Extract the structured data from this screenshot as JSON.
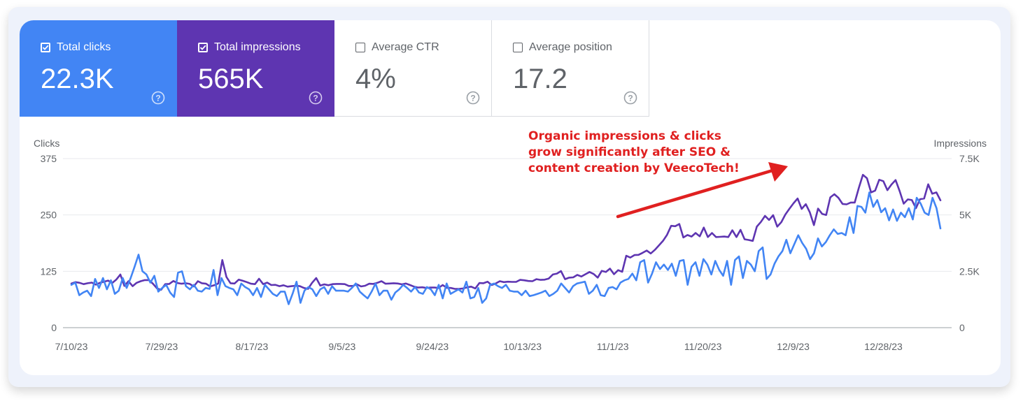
{
  "metrics": [
    {
      "label": "Total clicks",
      "value": "22.3K",
      "checked": true,
      "color": "#4285f4"
    },
    {
      "label": "Total impressions",
      "value": "565K",
      "checked": true,
      "color": "#5e35b1"
    },
    {
      "label": "Average CTR",
      "value": "4%",
      "checked": false
    },
    {
      "label": "Average position",
      "value": "17.2",
      "checked": false
    }
  ],
  "annotation": {
    "lines": [
      "Organic impressions & clicks",
      "grow significantly after SEO &",
      "content creation by VeecoTech!"
    ],
    "color": "#e02020"
  },
  "chart_data": {
    "type": "line",
    "ylabel_left": "Clicks",
    "ylabel_right": "Impressions",
    "ylim_left": [
      0,
      375
    ],
    "ylim_right": [
      0,
      7500
    ],
    "yticks_left": [
      "0",
      "125",
      "250",
      "375"
    ],
    "yticks_right": [
      "0",
      "2.5K",
      "5K",
      "7.5K"
    ],
    "xticks": [
      "7/10/23",
      "7/29/23",
      "8/17/23",
      "9/5/23",
      "9/24/23",
      "10/13/23",
      "11/1/23",
      "11/20/23",
      "12/9/23",
      "12/28/23"
    ],
    "x_start": "2023-07-10",
    "x_end": "2024-01-09",
    "grid": true,
    "series": [
      {
        "name": "Total clicks",
        "axis": "left",
        "color": "#4285f4",
        "values": [
          95,
          100,
          72,
          78,
          82,
          70,
          108,
          88,
          110,
          85,
          105,
          75,
          82,
          110,
          88,
          110,
          135,
          162,
          125,
          118,
          100,
          115,
          80,
          88,
          95,
          78,
          68,
          122,
          125,
          92,
          85,
          95,
          82,
          80,
          88,
          86,
          128,
          72,
          110,
          92,
          88,
          85,
          72,
          98,
          90,
          85,
          72,
          88,
          68,
          95,
          85,
          75,
          70,
          80,
          80,
          52,
          75,
          102,
          55,
          82,
          90,
          85,
          70,
          85,
          90,
          75,
          92,
          82,
          82,
          82,
          80,
          88,
          98,
          80,
          72,
          65,
          80,
          98,
          72,
          82,
          82,
          62,
          78,
          85,
          95,
          88,
          80,
          90,
          78,
          75,
          90,
          85,
          72,
          95,
          65,
          98,
          75,
          80,
          85,
          78,
          102,
          65,
          68,
          88,
          55,
          65,
          95,
          98,
          92,
          88,
          95,
          82,
          80,
          80,
          72,
          82,
          70,
          72,
          75,
          78,
          82,
          70,
          75,
          82,
          98,
          88,
          78,
          92,
          98,
          100,
          102,
          75,
          82,
          95,
          72,
          70,
          88,
          90,
          85,
          100,
          105,
          108,
          120,
          105,
          145,
          150,
          100,
          120,
          145,
          130,
          140,
          128,
          142,
          115,
          148,
          150,
          95,
          135,
          145,
          115,
          152,
          140,
          118,
          148,
          128,
          115,
          148,
          95,
          150,
          158,
          110,
          148,
          140,
          125,
          170,
          178,
          108,
          118,
          142,
          158,
          170,
          195,
          165,
          185,
          205,
          188,
          175,
          152,
          165,
          198,
          180,
          190,
          205,
          218,
          208,
          210,
          205,
          245,
          210,
          270,
          268,
          255,
          300,
          268,
          283,
          256,
          265,
          238,
          262,
          237,
          255,
          245,
          265,
          240,
          288,
          275,
          255,
          250,
          288,
          265,
          220
        ]
      },
      {
        "name": "Total impressions",
        "axis": "right",
        "color": "#5e35b1",
        "values": [
          1960,
          2020,
          1990,
          1930,
          1970,
          2000,
          1910,
          1990,
          2040,
          2090,
          1980,
          2130,
          2360,
          1850,
          2060,
          1840,
          1990,
          2060,
          2110,
          2110,
          1950,
          1740,
          1680,
          1930,
          1940,
          2070,
          1980,
          1950,
          1970,
          1940,
          1830,
          2060,
          1970,
          1950,
          1830,
          1880,
          1960,
          3000,
          2250,
          1970,
          1960,
          2130,
          2080,
          2020,
          1950,
          1930,
          2170,
          1930,
          2000,
          1890,
          1900,
          1840,
          1880,
          1820,
          1840,
          1860,
          1840,
          1760,
          1720,
          1990,
          2200,
          1870,
          1920,
          1880,
          1930,
          1940,
          1940,
          1930,
          1850,
          1850,
          1920,
          1830,
          1860,
          1950,
          1940,
          1990,
          2060,
          1950,
          1960,
          1970,
          1960,
          1920,
          1960,
          1890,
          1820,
          1780,
          1790,
          1760,
          1780,
          1780,
          1760,
          1890,
          1770,
          1760,
          1720,
          1720,
          1740,
          1790,
          1820,
          1740,
          1980,
          1970,
          2040,
          1890,
          1960,
          2060,
          2020,
          2040,
          2030,
          2030,
          2120,
          2100,
          2070,
          2060,
          2150,
          2120,
          2130,
          2180,
          2360,
          2400,
          2510,
          2150,
          2220,
          2230,
          2340,
          2270,
          2370,
          2470,
          2380,
          2220,
          2520,
          2470,
          2620,
          2370,
          2550,
          2480,
          3190,
          3110,
          3220,
          3230,
          3320,
          3420,
          3290,
          3450,
          3650,
          3850,
          4120,
          4520,
          4500,
          4600,
          4000,
          4110,
          4040,
          4200,
          4050,
          4440,
          4020,
          4200,
          4020,
          4030,
          4040,
          4020,
          4320,
          4020,
          4340,
          3920,
          3890,
          3850,
          4480,
          4690,
          4960,
          4780,
          4990,
          4480,
          4680,
          5020,
          5280,
          5520,
          5730,
          5270,
          5480,
          5110,
          4550,
          5280,
          5050,
          5000,
          5780,
          5920,
          5760,
          5490,
          5470,
          5550,
          5550,
          6200,
          6780,
          6630,
          6000,
          6080,
          6560,
          6500,
          6100,
          6350,
          6550,
          6060,
          5500,
          5690,
          5660,
          5300,
          5700,
          5730,
          6360,
          5940,
          6000,
          5650
        ]
      }
    ]
  }
}
